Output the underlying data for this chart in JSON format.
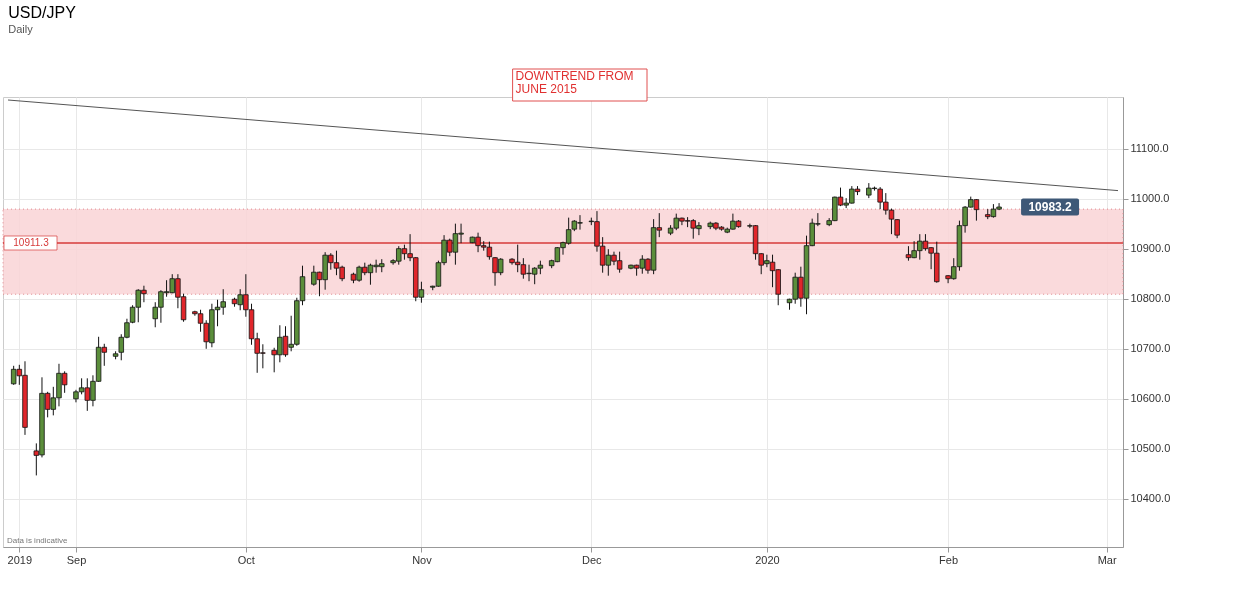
{
  "chart_data": {
    "type": "candlestick",
    "title": "USD/JPY",
    "subtitle": "Daily",
    "x": [
      "2019-08-21",
      "2019-08-22",
      "2019-08-23",
      "2019-08-25",
      "2019-08-26",
      "2019-08-27",
      "2019-08-28",
      "2019-08-29",
      "2019-08-30",
      "2019-09-01",
      "2019-09-02",
      "2019-09-03",
      "2019-09-04",
      "2019-09-05",
      "2019-09-06",
      "2019-09-08",
      "2019-09-09",
      "2019-09-10",
      "2019-09-11",
      "2019-09-12",
      "2019-09-13",
      "2019-09-15",
      "2019-09-16",
      "2019-09-17",
      "2019-09-18",
      "2019-09-19",
      "2019-09-20",
      "2019-09-22",
      "2019-09-23",
      "2019-09-24",
      "2019-09-25",
      "2019-09-26",
      "2019-09-27",
      "2019-09-29",
      "2019-09-30",
      "2019-10-01",
      "2019-10-02",
      "2019-10-03",
      "2019-10-04",
      "2019-10-06",
      "2019-10-07",
      "2019-10-08",
      "2019-10-09",
      "2019-10-10",
      "2019-10-11",
      "2019-10-13",
      "2019-10-14",
      "2019-10-15",
      "2019-10-16",
      "2019-10-17",
      "2019-10-18",
      "2019-10-20",
      "2019-10-21",
      "2019-10-22",
      "2019-10-23",
      "2019-10-24",
      "2019-10-25",
      "2019-10-27",
      "2019-10-28",
      "2019-10-29",
      "2019-10-30",
      "2019-10-31",
      "2019-11-01",
      "2019-11-03",
      "2019-11-04",
      "2019-11-05",
      "2019-11-06",
      "2019-11-07",
      "2019-11-08",
      "2019-11-10",
      "2019-11-11",
      "2019-11-12",
      "2019-11-13",
      "2019-11-14",
      "2019-11-15",
      "2019-11-17",
      "2019-11-18",
      "2019-11-19",
      "2019-11-20",
      "2019-11-21",
      "2019-11-22",
      "2019-11-24",
      "2019-11-25",
      "2019-11-26",
      "2019-11-27",
      "2019-11-28",
      "2019-11-29",
      "2019-12-01",
      "2019-12-02",
      "2019-12-03",
      "2019-12-04",
      "2019-12-05",
      "2019-12-06",
      "2019-12-08",
      "2019-12-09",
      "2019-12-10",
      "2019-12-11",
      "2019-12-12",
      "2019-12-13",
      "2019-12-15",
      "2019-12-16",
      "2019-12-17",
      "2019-12-18",
      "2019-12-19",
      "2019-12-20",
      "2019-12-22",
      "2019-12-23",
      "2019-12-24",
      "2019-12-25",
      "2019-12-26",
      "2019-12-27",
      "2019-12-29",
      "2019-12-30",
      "2019-12-31",
      "2020-01-01",
      "2020-01-02",
      "2020-01-03",
      "2020-01-05",
      "2020-01-06",
      "2020-01-07",
      "2020-01-08",
      "2020-01-09",
      "2020-01-10",
      "2020-01-12",
      "2020-01-13",
      "2020-01-14",
      "2020-01-15",
      "2020-01-16",
      "2020-01-17",
      "2020-01-19",
      "2020-01-20",
      "2020-01-21",
      "2020-01-22",
      "2020-01-23",
      "2020-01-24",
      "2020-01-26",
      "2020-01-27",
      "2020-01-28",
      "2020-01-29",
      "2020-01-30",
      "2020-01-31",
      "2020-02-02",
      "2020-02-03",
      "2020-02-04",
      "2020-02-05",
      "2020-02-06",
      "2020-02-07",
      "2020-02-09",
      "2020-02-10",
      "2020-02-11"
    ],
    "ohlc": [
      [
        10630,
        10666,
        10628,
        10659
      ],
      [
        10659,
        10668,
        10628,
        10646
      ],
      [
        10647,
        10675,
        10528,
        10543
      ],
      [
        10496,
        10511,
        10447,
        10487
      ],
      [
        10488,
        10643,
        10483,
        10611
      ],
      [
        10611,
        10614,
        10563,
        10579
      ],
      [
        10579,
        10624,
        10567,
        10602
      ],
      [
        10602,
        10670,
        10585,
        10651
      ],
      [
        10651,
        10655,
        10612,
        10628
      ],
      [
        10600,
        10618,
        10593,
        10614
      ],
      [
        10614,
        10641,
        10609,
        10622
      ],
      [
        10622,
        10641,
        10576,
        10597
      ],
      [
        10597,
        10647,
        10585,
        10635
      ],
      [
        10635,
        10724,
        10634,
        10703
      ],
      [
        10703,
        10710,
        10666,
        10693
      ],
      [
        10685,
        10695,
        10679,
        10690
      ],
      [
        10693,
        10729,
        10677,
        10723
      ],
      [
        10723,
        10760,
        10721,
        10752
      ],
      [
        10753,
        10787,
        10751,
        10783
      ],
      [
        10783,
        10819,
        10753,
        10817
      ],
      [
        10817,
        10826,
        10793,
        10810
      ],
      [
        10760,
        10793,
        10743,
        10783
      ],
      [
        10783,
        10817,
        10752,
        10814
      ],
      [
        10812,
        10837,
        10804,
        10814
      ],
      [
        10812,
        10849,
        10811,
        10840
      ],
      [
        10840,
        10849,
        10781,
        10803
      ],
      [
        10804,
        10810,
        10754,
        10758
      ],
      [
        10774,
        10776,
        10766,
        10770
      ],
      [
        10770,
        10778,
        10734,
        10751
      ],
      [
        10751,
        10757,
        10700,
        10714
      ],
      [
        10712,
        10790,
        10703,
        10778
      ],
      [
        10778,
        10798,
        10745,
        10783
      ],
      [
        10783,
        10819,
        10768,
        10794
      ],
      [
        10799,
        10802,
        10784,
        10790
      ],
      [
        10788,
        10819,
        10777,
        10808
      ],
      [
        10808,
        10849,
        10764,
        10778
      ],
      [
        10778,
        10790,
        10708,
        10720
      ],
      [
        10720,
        10732,
        10652,
        10691
      ],
      [
        10692,
        10709,
        10661,
        10691
      ],
      [
        10697,
        10702,
        10653,
        10688
      ],
      [
        10688,
        10747,
        10673,
        10723
      ],
      [
        10725,
        10745,
        10684,
        10688
      ],
      [
        10703,
        10766,
        10695,
        10709
      ],
      [
        10709,
        10802,
        10706,
        10796
      ],
      [
        10796,
        10866,
        10787,
        10844
      ],
      [
        10829,
        10866,
        10826,
        10853
      ],
      [
        10853,
        10854,
        10805,
        10838
      ],
      [
        10838,
        10893,
        10818,
        10887
      ],
      [
        10887,
        10891,
        10858,
        10872
      ],
      [
        10872,
        10896,
        10847,
        10861
      ],
      [
        10863,
        10866,
        10835,
        10840
      ],
      [
        10849,
        10852,
        10831,
        10837
      ],
      [
        10837,
        10866,
        10834,
        10863
      ],
      [
        10863,
        10872,
        10847,
        10852
      ],
      [
        10852,
        10870,
        10828,
        10867
      ],
      [
        10864,
        10878,
        10852,
        10867
      ],
      [
        10864,
        10879,
        10853,
        10870
      ],
      [
        10872,
        10879,
        10868,
        10876
      ],
      [
        10875,
        10905,
        10868,
        10900
      ],
      [
        10900,
        10908,
        10878,
        10890
      ],
      [
        10890,
        10929,
        10875,
        10882
      ],
      [
        10882,
        10883,
        10795,
        10803
      ],
      [
        10803,
        10834,
        10792,
        10818
      ],
      [
        10823,
        10826,
        10817,
        10825
      ],
      [
        10825,
        10876,
        10824,
        10872
      ],
      [
        10872,
        10927,
        10867,
        10917
      ],
      [
        10917,
        10920,
        10885,
        10893
      ],
      [
        10893,
        10950,
        10868,
        10930
      ],
      [
        10929,
        10950,
        10911,
        10931
      ],
      [
        10912,
        10924,
        10911,
        10923
      ],
      [
        10923,
        10932,
        10893,
        10906
      ],
      [
        10906,
        10915,
        10896,
        10903
      ],
      [
        10903,
        10914,
        10878,
        10884
      ],
      [
        10882,
        10883,
        10826,
        10852
      ],
      [
        10852,
        10881,
        10847,
        10879
      ],
      [
        10879,
        10881,
        10868,
        10872
      ],
      [
        10873,
        10908,
        10853,
        10868
      ],
      [
        10868,
        10881,
        10840,
        10849
      ],
      [
        10850,
        10868,
        10835,
        10851
      ],
      [
        10849,
        10863,
        10829,
        10861
      ],
      [
        10861,
        10876,
        10849,
        10867
      ],
      [
        10866,
        10878,
        10861,
        10876
      ],
      [
        10874,
        10903,
        10873,
        10902
      ],
      [
        10902,
        10914,
        10888,
        10912
      ],
      [
        10911,
        10962,
        10908,
        10938
      ],
      [
        10939,
        10957,
        10935,
        10955
      ],
      [
        10951,
        10967,
        10938,
        10952
      ],
      [
        10954,
        10962,
        10947,
        10955
      ],
      [
        10954,
        10975,
        10894,
        10905
      ],
      [
        10905,
        10923,
        10852,
        10867
      ],
      [
        10867,
        10899,
        10846,
        10887
      ],
      [
        10887,
        10894,
        10867,
        10875
      ],
      [
        10876,
        10894,
        10852,
        10859
      ],
      [
        10861,
        10868,
        10859,
        10867
      ],
      [
        10867,
        10868,
        10846,
        10861
      ],
      [
        10861,
        10887,
        10850,
        10879
      ],
      [
        10879,
        10881,
        10850,
        10857
      ],
      [
        10857,
        10959,
        10849,
        10942
      ],
      [
        10942,
        10971,
        10923,
        10937
      ],
      [
        10931,
        10947,
        10927,
        10941
      ],
      [
        10941,
        10970,
        10937,
        10961
      ],
      [
        10961,
        10962,
        10947,
        10955
      ],
      [
        10956,
        10963,
        10943,
        10955
      ],
      [
        10956,
        10959,
        10920,
        10941
      ],
      [
        10940,
        10953,
        10927,
        10946
      ],
      [
        10944,
        10954,
        10939,
        10951
      ],
      [
        10951,
        10953,
        10937,
        10941
      ],
      [
        10943,
        10945,
        10936,
        10939
      ],
      [
        10933,
        10942,
        10931,
        10939
      ],
      [
        10939,
        10970,
        10938,
        10955
      ],
      [
        10955,
        10957,
        10942,
        10944
      ],
      [
        10945,
        10950,
        10941,
        10946
      ],
      [
        10946,
        10947,
        10878,
        10890
      ],
      [
        10890,
        10891,
        10849,
        10867
      ],
      [
        10870,
        10888,
        10863,
        10876
      ],
      [
        10873,
        10888,
        10823,
        10856
      ],
      [
        10858,
        10859,
        10787,
        10809
      ],
      [
        10792,
        10800,
        10778,
        10799
      ],
      [
        10799,
        10852,
        10790,
        10843
      ],
      [
        10843,
        10864,
        10784,
        10801
      ],
      [
        10801,
        10926,
        10769,
        10906
      ],
      [
        10906,
        10960,
        10905,
        10951
      ],
      [
        10949,
        10971,
        10945,
        10950
      ],
      [
        10948,
        10961,
        10945,
        10956
      ],
      [
        10956,
        11004,
        10955,
        11003
      ],
      [
        11003,
        11022,
        10985,
        10987
      ],
      [
        10987,
        11001,
        10981,
        10991
      ],
      [
        10991,
        11025,
        10990,
        11019
      ],
      [
        11019,
        11025,
        11007,
        11014
      ],
      [
        11007,
        11031,
        11001,
        11021
      ],
      [
        11020,
        11024,
        11016,
        11021
      ],
      [
        11019,
        11023,
        10979,
        10993
      ],
      [
        10993,
        11011,
        10968,
        10977
      ],
      [
        10977,
        10980,
        10929,
        10959
      ],
      [
        10958,
        10959,
        10921,
        10927
      ],
      [
        10888,
        10905,
        10876,
        10882
      ],
      [
        10882,
        10915,
        10881,
        10896
      ],
      [
        10896,
        10929,
        10878,
        10915
      ],
      [
        10915,
        10929,
        10896,
        10900
      ],
      [
        10902,
        10903,
        10859,
        10891
      ],
      [
        10891,
        10914,
        10832,
        10834
      ],
      [
        10846,
        10847,
        10831,
        10840
      ],
      [
        10840,
        10881,
        10838,
        10864
      ],
      [
        10864,
        10956,
        10856,
        10946
      ],
      [
        10946,
        10985,
        10932,
        10983
      ],
      [
        10983,
        11004,
        10982,
        10998
      ],
      [
        10998,
        10999,
        10956,
        10978
      ],
      [
        10968,
        10979,
        10959,
        10964
      ],
      [
        10964,
        10989,
        10962,
        10979
      ],
      [
        10979,
        10991,
        10977,
        10983.2
      ]
    ],
    "series": [
      {
        "type": "line",
        "color": "#555555",
        "x": [
          "2019-08-20",
          "2020-03-03"
        ],
        "values": [
          11197,
          11016
        ]
      }
    ],
    "xlim": [
      "2019-08-20",
      "2020-03-03"
    ],
    "xticks": [
      {
        "value": "2019-08-22",
        "label": "2019"
      },
      {
        "value": "2019-09-01",
        "label": "Sep"
      },
      {
        "value": "2019-10-01",
        "label": "Oct"
      },
      {
        "value": "2019-11-01",
        "label": "Nov"
      },
      {
        "value": "2019-12-01",
        "label": "Dec"
      },
      {
        "value": "2020-01-01",
        "label": "2020"
      },
      {
        "value": "2020-02-02",
        "label": "Feb"
      },
      {
        "value": "2020-03-01",
        "label": "Mar"
      }
    ],
    "ylim": [
      10304,
      11203
    ],
    "yticks": [
      {
        "value": 10400,
        "label": "10400.0"
      },
      {
        "value": 10500,
        "label": "10500.0"
      },
      {
        "value": 10600,
        "label": "10600.0"
      },
      {
        "value": 10700,
        "label": "10700.0"
      },
      {
        "value": 10800,
        "label": "10800.0"
      },
      {
        "value": 10900,
        "label": "10900.0"
      },
      {
        "value": 11000,
        "label": "11000.0"
      },
      {
        "value": 11100,
        "label": "11100.0"
      }
    ],
    "grid": true,
    "ref_lines": [
      {
        "axis": "y",
        "value": 10911.3,
        "label": "10911.3",
        "color": "#d63a3a"
      }
    ],
    "bands": [
      {
        "axis": "y",
        "from": 10809,
        "to": 10979,
        "color": "#f9d3d6"
      }
    ],
    "annotations": [
      "DOWNTREND FROM\nJUNE 2015",
      "Data is indicative",
      {
        "text": "10983.2",
        "x": "2020-02-11",
        "y": 10983.2
      }
    ]
  }
}
